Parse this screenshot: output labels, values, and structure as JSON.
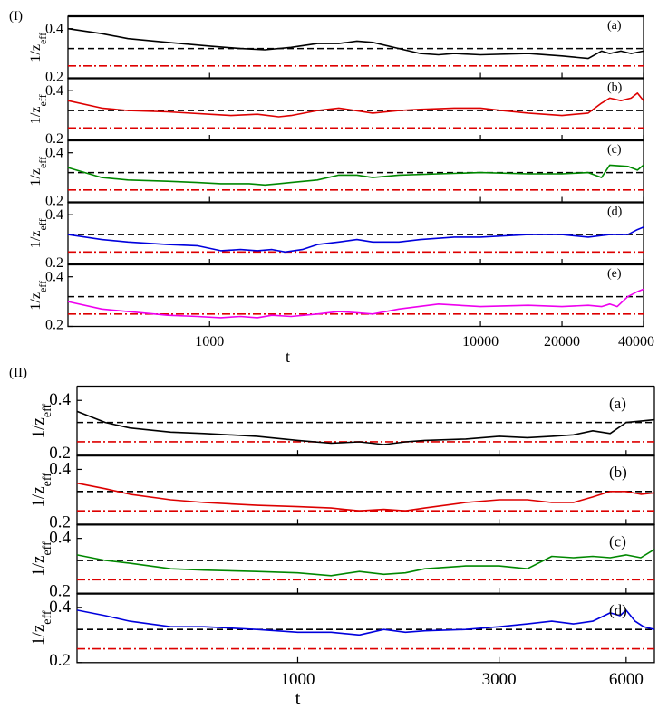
{
  "chart_data": [
    {
      "type": "line",
      "panel_group_label": "(I)",
      "xscale": "log",
      "xlim": [
        300,
        40000
      ],
      "ylim": [
        0.2,
        0.45
      ],
      "xlabel": "t",
      "ylabel": "1/z",
      "ylabel_sub": "eff",
      "yticks": [
        {
          "value": 0.2,
          "label": "0.2"
        },
        {
          "value": 0.4,
          "label": "0.4"
        }
      ],
      "xticks": [
        {
          "value": 1000,
          "label": "1000"
        },
        {
          "value": 10000,
          "label": "10000"
        },
        {
          "value": 20000,
          "label": "20000"
        },
        {
          "value": 40000,
          "label": "40000"
        }
      ],
      "reference_lines": {
        "dashed": 0.32,
        "dash_dot": 0.25
      },
      "colors": {
        "dashed": "#000000",
        "dash_dot": "#dd0000"
      },
      "panels": [
        {
          "label": "(a)",
          "color": "#000000",
          "x": [
            300,
            400,
            500,
            700,
            1000,
            1300,
            1600,
            2000,
            2500,
            3000,
            3500,
            4000,
            5000,
            6000,
            7000,
            8000,
            10000,
            15000,
            20000,
            25000,
            28000,
            30000,
            33000,
            36000,
            40000
          ],
          "y": [
            0.4,
            0.38,
            0.36,
            0.345,
            0.33,
            0.32,
            0.315,
            0.325,
            0.34,
            0.34,
            0.35,
            0.345,
            0.32,
            0.3,
            0.295,
            0.3,
            0.295,
            0.3,
            0.29,
            0.28,
            0.31,
            0.3,
            0.31,
            0.3,
            0.31
          ]
        },
        {
          "label": "(b)",
          "color": "#dd0000",
          "x": [
            300,
            400,
            500,
            700,
            1000,
            1200,
            1500,
            1800,
            2000,
            2500,
            3000,
            4000,
            5000,
            6000,
            8000,
            10000,
            12000,
            15000,
            20000,
            25000,
            28000,
            30000,
            33000,
            36000,
            38000,
            40000
          ],
          "y": [
            0.36,
            0.33,
            0.32,
            0.315,
            0.305,
            0.3,
            0.305,
            0.295,
            0.3,
            0.32,
            0.33,
            0.31,
            0.32,
            0.325,
            0.33,
            0.33,
            0.32,
            0.31,
            0.3,
            0.31,
            0.35,
            0.37,
            0.36,
            0.37,
            0.39,
            0.36
          ]
        },
        {
          "label": "(c)",
          "color": "#008800",
          "x": [
            300,
            400,
            500,
            700,
            900,
            1100,
            1400,
            1600,
            1800,
            2000,
            2500,
            3000,
            3500,
            4000,
            5000,
            7000,
            10000,
            15000,
            20000,
            25000,
            28000,
            30000,
            35000,
            38000,
            40000
          ],
          "y": [
            0.34,
            0.3,
            0.29,
            0.285,
            0.28,
            0.275,
            0.275,
            0.27,
            0.275,
            0.28,
            0.29,
            0.31,
            0.31,
            0.3,
            0.31,
            0.315,
            0.32,
            0.315,
            0.315,
            0.32,
            0.3,
            0.35,
            0.345,
            0.33,
            0.35
          ]
        },
        {
          "label": "(d)",
          "color": "#0000dd",
          "x": [
            300,
            400,
            500,
            700,
            900,
            1100,
            1300,
            1500,
            1700,
            1900,
            2200,
            2500,
            3000,
            3500,
            4000,
            5000,
            6000,
            8000,
            10000,
            15000,
            20000,
            25000,
            30000,
            35000,
            38000,
            40000
          ],
          "y": [
            0.32,
            0.3,
            0.29,
            0.28,
            0.275,
            0.255,
            0.26,
            0.255,
            0.26,
            0.25,
            0.26,
            0.28,
            0.29,
            0.3,
            0.29,
            0.29,
            0.3,
            0.31,
            0.31,
            0.32,
            0.32,
            0.31,
            0.32,
            0.32,
            0.34,
            0.35
          ]
        },
        {
          "label": "(e)",
          "color": "#ee00ee",
          "x": [
            300,
            400,
            500,
            700,
            900,
            1100,
            1300,
            1500,
            1700,
            2000,
            2500,
            3000,
            3500,
            4000,
            5000,
            7000,
            10000,
            15000,
            20000,
            25000,
            28000,
            30000,
            32000,
            35000,
            38000,
            40000
          ],
          "y": [
            0.3,
            0.27,
            0.26,
            0.245,
            0.24,
            0.235,
            0.24,
            0.235,
            0.245,
            0.24,
            0.25,
            0.26,
            0.255,
            0.25,
            0.27,
            0.29,
            0.28,
            0.285,
            0.28,
            0.285,
            0.28,
            0.29,
            0.28,
            0.32,
            0.34,
            0.35
          ]
        }
      ]
    },
    {
      "type": "line",
      "panel_group_label": "(II)",
      "xscale": "log",
      "xlim": [
        300,
        7000
      ],
      "ylim": [
        0.2,
        0.45
      ],
      "xlabel": "t",
      "ylabel": "1/z",
      "ylabel_sub": "eff",
      "yticks": [
        {
          "value": 0.2,
          "label": "0.2"
        },
        {
          "value": 0.4,
          "label": "0.4"
        }
      ],
      "xticks": [
        {
          "value": 1000,
          "label": "1000"
        },
        {
          "value": 3000,
          "label": "3000"
        },
        {
          "value": 6000,
          "label": "6000"
        }
      ],
      "reference_lines": {
        "dashed": 0.32,
        "dash_dot": 0.25
      },
      "colors": {
        "dashed": "#000000",
        "dash_dot": "#dd0000"
      },
      "panels": [
        {
          "label": "(a)",
          "color": "#000000",
          "x": [
            300,
            350,
            400,
            500,
            600,
            800,
            1000,
            1200,
            1400,
            1500,
            1600,
            1800,
            2000,
            2500,
            3000,
            3500,
            4000,
            4500,
            5000,
            5500,
            6000,
            6500,
            7000
          ],
          "y": [
            0.36,
            0.32,
            0.3,
            0.285,
            0.28,
            0.27,
            0.255,
            0.245,
            0.25,
            0.245,
            0.24,
            0.25,
            0.255,
            0.26,
            0.27,
            0.265,
            0.27,
            0.275,
            0.29,
            0.28,
            0.32,
            0.325,
            0.33
          ]
        },
        {
          "label": "(b)",
          "color": "#dd0000",
          "x": [
            300,
            350,
            400,
            500,
            600,
            800,
            1000,
            1200,
            1400,
            1600,
            1800,
            2000,
            2500,
            3000,
            3500,
            4000,
            4500,
            5000,
            5500,
            6000,
            6500,
            7000
          ],
          "y": [
            0.35,
            0.33,
            0.31,
            0.29,
            0.28,
            0.27,
            0.265,
            0.26,
            0.25,
            0.255,
            0.25,
            0.26,
            0.28,
            0.29,
            0.29,
            0.28,
            0.28,
            0.3,
            0.32,
            0.32,
            0.31,
            0.315
          ]
        },
        {
          "label": "(c)",
          "color": "#008800",
          "x": [
            300,
            350,
            400,
            500,
            600,
            800,
            1000,
            1200,
            1400,
            1600,
            1800,
            2000,
            2500,
            3000,
            3500,
            4000,
            4500,
            5000,
            5500,
            6000,
            6500,
            7000
          ],
          "y": [
            0.34,
            0.32,
            0.31,
            0.29,
            0.285,
            0.28,
            0.275,
            0.265,
            0.28,
            0.27,
            0.275,
            0.29,
            0.3,
            0.3,
            0.29,
            0.335,
            0.33,
            0.335,
            0.33,
            0.34,
            0.33,
            0.36
          ]
        },
        {
          "label": "(d)",
          "color": "#0000dd",
          "x": [
            300,
            350,
            400,
            500,
            600,
            800,
            1000,
            1200,
            1400,
            1600,
            1800,
            2000,
            2500,
            3000,
            3500,
            4000,
            4500,
            5000,
            5500,
            5800,
            6000,
            6300,
            6600,
            7000
          ],
          "y": [
            0.39,
            0.37,
            0.35,
            0.33,
            0.33,
            0.32,
            0.31,
            0.31,
            0.3,
            0.32,
            0.31,
            0.315,
            0.32,
            0.33,
            0.34,
            0.35,
            0.34,
            0.35,
            0.38,
            0.37,
            0.39,
            0.35,
            0.33,
            0.32
          ]
        }
      ]
    }
  ]
}
